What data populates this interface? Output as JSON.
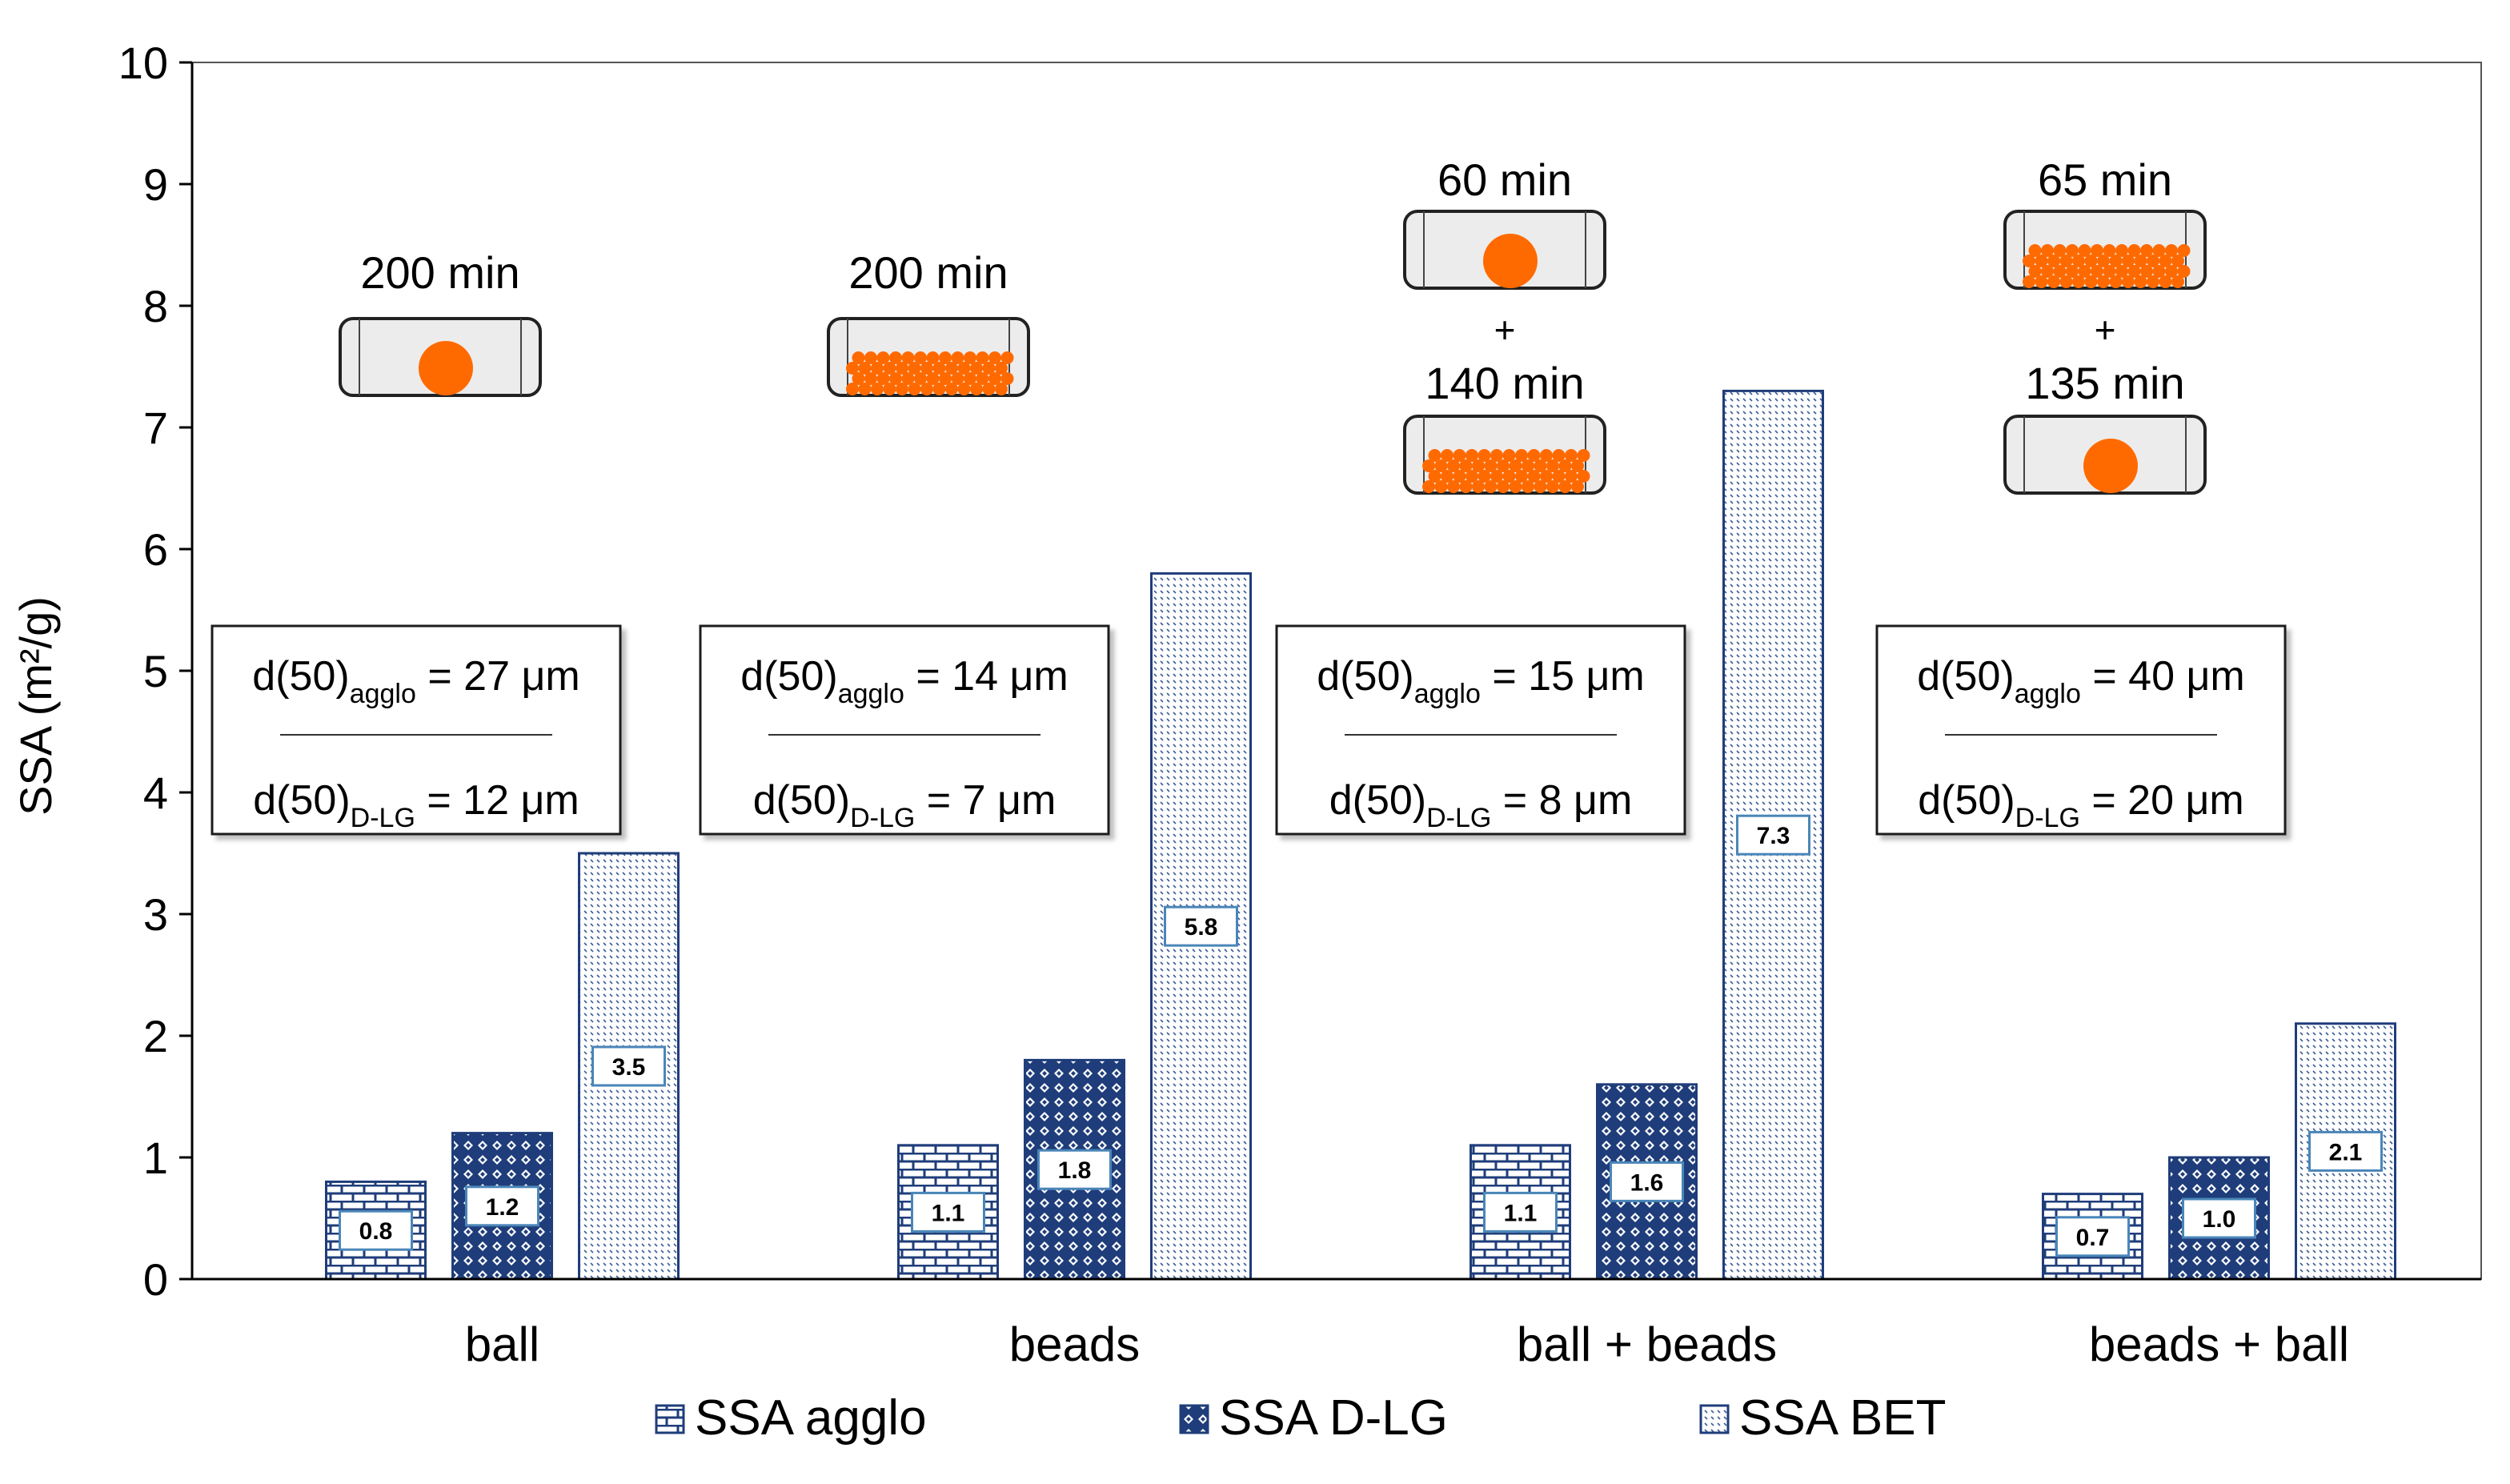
{
  "chart_data": {
    "type": "bar",
    "title": "",
    "xlabel": "",
    "ylabel": "SSA (m²/g)",
    "ylim": [
      0,
      10
    ],
    "yticks": [
      "0",
      "1",
      "2",
      "3",
      "4",
      "5",
      "6",
      "7",
      "8",
      "9",
      "10"
    ],
    "grid": false,
    "legend_position": "bottom",
    "categories": [
      "ball",
      "beads",
      "ball + beads",
      "beads + ball"
    ],
    "series": [
      {
        "name": "SSA agglo",
        "pattern": "brick",
        "values": [
          0.8,
          1.1,
          1.1,
          0.7
        ],
        "labels": [
          "0.8",
          "1.1",
          "1.1",
          "0.7"
        ]
      },
      {
        "name": "SSA D-LG",
        "pattern": "diamond",
        "values": [
          1.2,
          1.8,
          1.6,
          1.0
        ],
        "labels": [
          "1.2",
          "1.8",
          "1.6",
          "1.0"
        ]
      },
      {
        "name": "SSA BET",
        "pattern": "dotted",
        "values": [
          3.5,
          5.8,
          7.3,
          2.1
        ],
        "labels": [
          "3.5",
          "5.8",
          "7.3",
          "2.1"
        ]
      }
    ],
    "annotations": [
      {
        "category": "ball",
        "milling_steps": [
          {
            "duration": "200 min",
            "media": "ball"
          }
        ],
        "agglo_value": "27 μm",
        "dlg_value": "12 μm"
      },
      {
        "category": "beads",
        "milling_steps": [
          {
            "duration": "200 min",
            "media": "beads"
          }
        ],
        "agglo_value": "14 μm",
        "dlg_value": "7 μm"
      },
      {
        "category": "ball + beads",
        "milling_steps": [
          {
            "duration": "60 min",
            "media": "ball"
          },
          {
            "duration": "140 min",
            "media": "beads"
          }
        ],
        "agglo_value": "15 μm",
        "dlg_value": "8 μm"
      },
      {
        "category": "beads + ball",
        "milling_steps": [
          {
            "duration": "65 min",
            "media": "beads"
          },
          {
            "duration": "135 min",
            "media": "ball"
          }
        ],
        "agglo_value": "40 μm",
        "dlg_value": "20 μm"
      }
    ],
    "d50_prefix": "d(50)",
    "agglo_subscript": "agglo",
    "dlg_subscript": "D-LG",
    "plus_sign": "+"
  },
  "colors": {
    "bar_blue": "#1f3d7a",
    "media_orange": "#ff6a00",
    "drum_fill": "#ececec",
    "box_border": "#1a1a1a",
    "axis": "#000000",
    "label_border": "#4a86b8"
  }
}
